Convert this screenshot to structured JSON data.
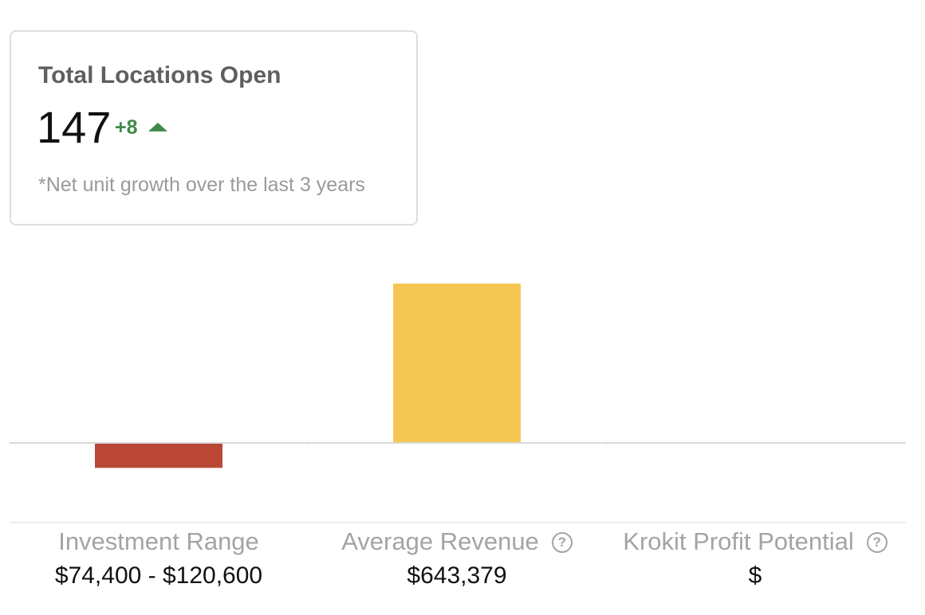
{
  "card": {
    "title": "Total Locations Open",
    "value": "147",
    "delta": "+8",
    "delta_icon": "triangle-up-icon",
    "note": "*Net unit growth over the last 3 years",
    "delta_color": "#3f8a4a"
  },
  "columns": [
    {
      "label": "Investment Range",
      "value": "$74,400 - $120,600",
      "help_icon": null
    },
    {
      "label": "Average Revenue",
      "value": "$643,379",
      "help_icon": "question-circle-icon",
      "help_glyph": "?"
    },
    {
      "label": "Krokit Profit Potential",
      "value": "$",
      "help_icon": "question-circle-icon",
      "help_glyph": "?"
    }
  ],
  "chart_data": {
    "type": "bar",
    "categories": [
      "Investment Range",
      "Average Revenue",
      "Krokit Profit Potential"
    ],
    "values": [
      -97500,
      643379,
      0
    ],
    "colors": [
      "#ba4736",
      "#f4c752",
      "#cccccc"
    ],
    "ylim": [
      -322000,
      643379
    ],
    "baseline": 0,
    "grid": false,
    "legend": "none"
  }
}
